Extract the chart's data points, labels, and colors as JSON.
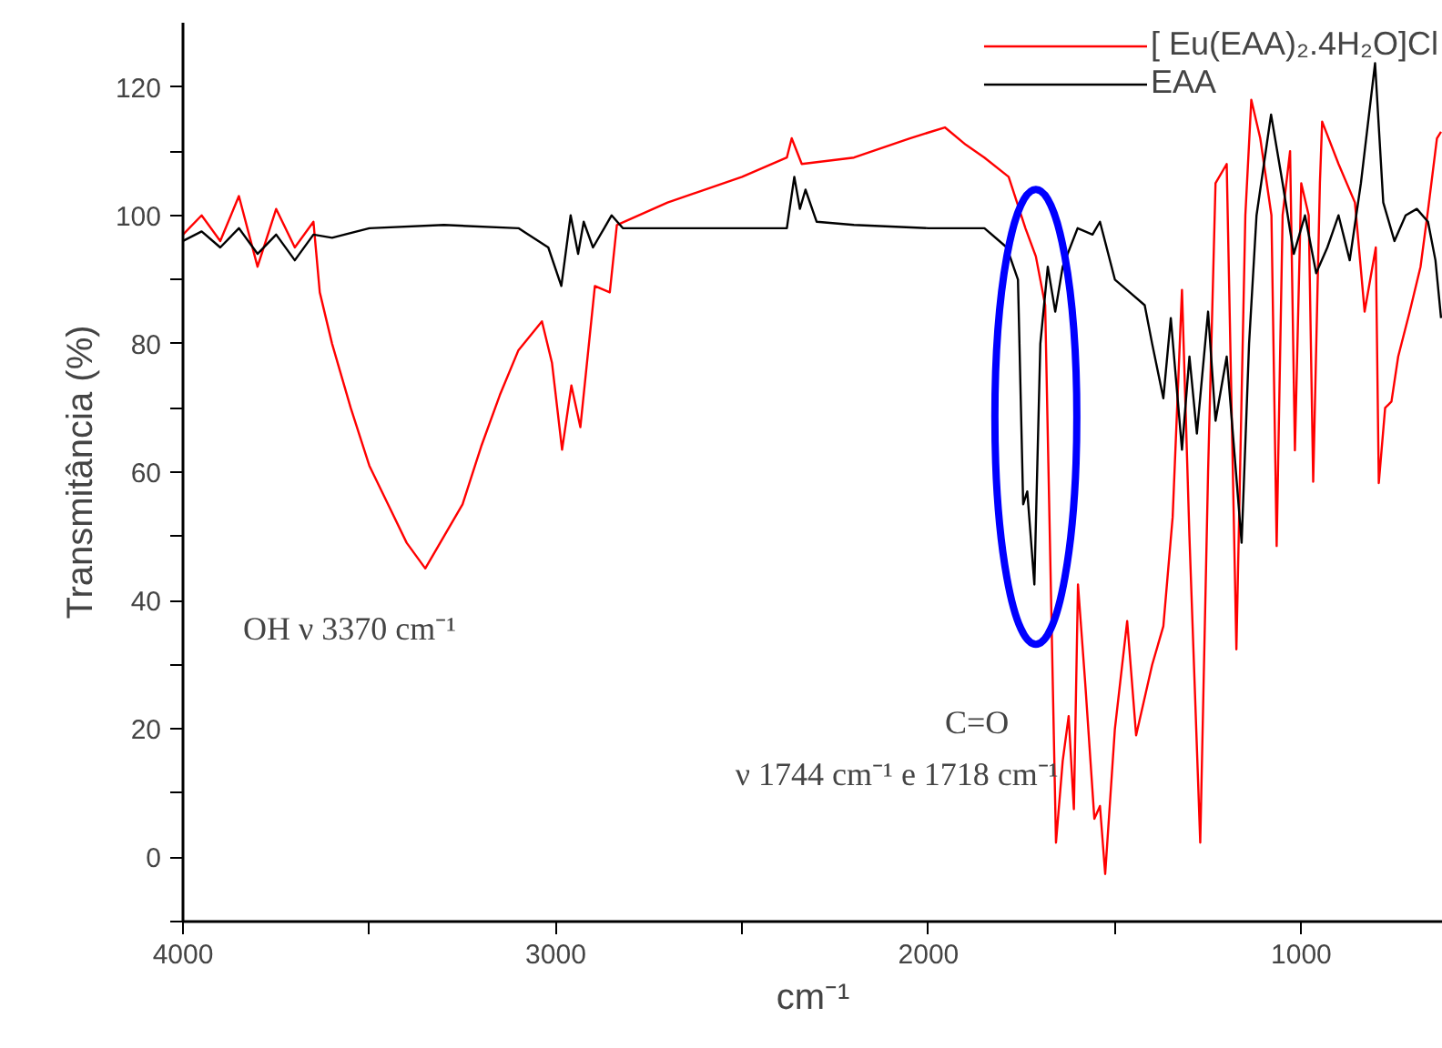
{
  "chart_data": {
    "type": "line",
    "xlabel": "cm⁻¹",
    "ylabel": "Transmitância (%)",
    "xlim": [
      4000,
      620
    ],
    "ylim": [
      -10,
      130
    ],
    "xticks": [
      4000,
      {
        "value": 3500,
        "label": null
      },
      3000,
      {
        "value": 2500,
        "label": null
      },
      2000,
      {
        "value": 1500,
        "label": null
      },
      1000
    ],
    "yticks": [
      {
        "value": -10,
        "label": null
      },
      0,
      {
        "value": 10,
        "label": null
      },
      20,
      {
        "value": 30,
        "label": null
      },
      40,
      {
        "value": 50,
        "label": null
      },
      60,
      {
        "value": 70,
        "label": null
      },
      80,
      {
        "value": 90,
        "label": null
      },
      100,
      {
        "value": 110,
        "label": null
      },
      120
    ],
    "grid": false,
    "legend": "top right",
    "line_style": "solid",
    "marker": "none",
    "series": [
      {
        "name": "[ Eu(EAA)₂.4H₂O]Cl",
        "color": "#ff0000",
        "x": [
          4000,
          3950,
          3900,
          3850,
          3800,
          3750,
          3700,
          3650,
          3633,
          3600,
          3550,
          3500,
          3450,
          3400,
          3350,
          3300,
          3250,
          3200,
          3150,
          3100,
          3037,
          3010,
          2983,
          2958,
          2934,
          2895,
          2855,
          2836,
          2700,
          2500,
          2380,
          2367,
          2340,
          2200,
          2100,
          2050,
          1956,
          1900,
          1850,
          1785,
          1740,
          1712,
          1687,
          1658,
          1640,
          1624,
          1610,
          1599,
          1580,
          1555,
          1540,
          1526,
          1500,
          1467,
          1443,
          1400,
          1370,
          1345,
          1320,
          1300,
          1271,
          1250,
          1230,
          1200,
          1174,
          1150,
          1134,
          1110,
          1080,
          1066,
          1050,
          1030,
          1017,
          1000,
          980,
          968,
          950,
          944,
          900,
          856,
          830,
          800,
          792,
          775,
          758,
          740,
          709,
          680,
          660,
          636,
          625
        ],
        "values": [
          97,
          100,
          96,
          103,
          92,
          101,
          95,
          99,
          88,
          80,
          70,
          61,
          55,
          49,
          45,
          50,
          55,
          64,
          72,
          79,
          83.5,
          77,
          63.5,
          73.5,
          67,
          89,
          88,
          98.5,
          102,
          106,
          109,
          112,
          108,
          109,
          111,
          112,
          113.7,
          111,
          109,
          106,
          98,
          93.6,
          86,
          2.3,
          15,
          22,
          7.5,
          42.5,
          27.5,
          6,
          8,
          -2.6,
          20,
          36.8,
          19,
          30,
          36,
          53,
          88.4,
          50,
          2.3,
          60,
          105,
          108,
          32.4,
          100,
          118,
          112,
          100,
          48.5,
          100,
          110,
          63.4,
          105,
          100,
          58.5,
          105,
          114.6,
          108,
          102,
          85,
          95,
          58.3,
          70,
          71,
          78,
          85,
          92,
          100.8,
          112,
          113
        ]
      },
      {
        "name": "EAA",
        "color": "#000000",
        "x": [
          4000,
          3950,
          3900,
          3850,
          3800,
          3750,
          3700,
          3650,
          3600,
          3500,
          3300,
          3100,
          3020,
          2985,
          2960,
          2940,
          2925,
          2900,
          2870,
          2850,
          2820,
          2500,
          2380,
          2360,
          2345,
          2330,
          2300,
          2200,
          2000,
          1850,
          1790,
          1760,
          1746,
          1735,
          1716,
          1700,
          1680,
          1660,
          1640,
          1600,
          1560,
          1540,
          1500,
          1460,
          1420,
          1400,
          1370,
          1350,
          1320,
          1300,
          1280,
          1250,
          1230,
          1200,
          1160,
          1140,
          1120,
          1081,
          1050,
          1020,
          990,
          960,
          930,
          900,
          870,
          840,
          802,
          780,
          750,
          720,
          690,
          660,
          640,
          625
        ],
        "values": [
          96,
          97.5,
          95,
          98,
          94,
          97,
          93,
          97,
          96.5,
          98,
          98.5,
          98,
          95,
          89,
          100,
          94,
          99,
          95,
          98,
          100,
          98,
          98,
          98,
          106,
          101,
          104,
          99,
          98.5,
          98,
          98,
          95,
          90,
          55,
          57,
          42.5,
          80,
          92,
          85,
          92,
          98,
          97,
          99,
          90,
          88,
          86,
          80,
          71.5,
          84,
          63.5,
          78,
          66,
          85,
          68,
          78,
          49,
          80,
          100,
          115.7,
          105,
          94,
          100,
          91,
          95,
          100,
          93,
          105,
          123.7,
          102,
          96,
          100,
          101,
          99,
          93,
          84
        ]
      }
    ],
    "annotations": [
      "OH ν 3370 cm⁻¹",
      "C=O",
      "ν 1744 cm⁻¹ e 1718 cm⁻¹"
    ]
  }
}
